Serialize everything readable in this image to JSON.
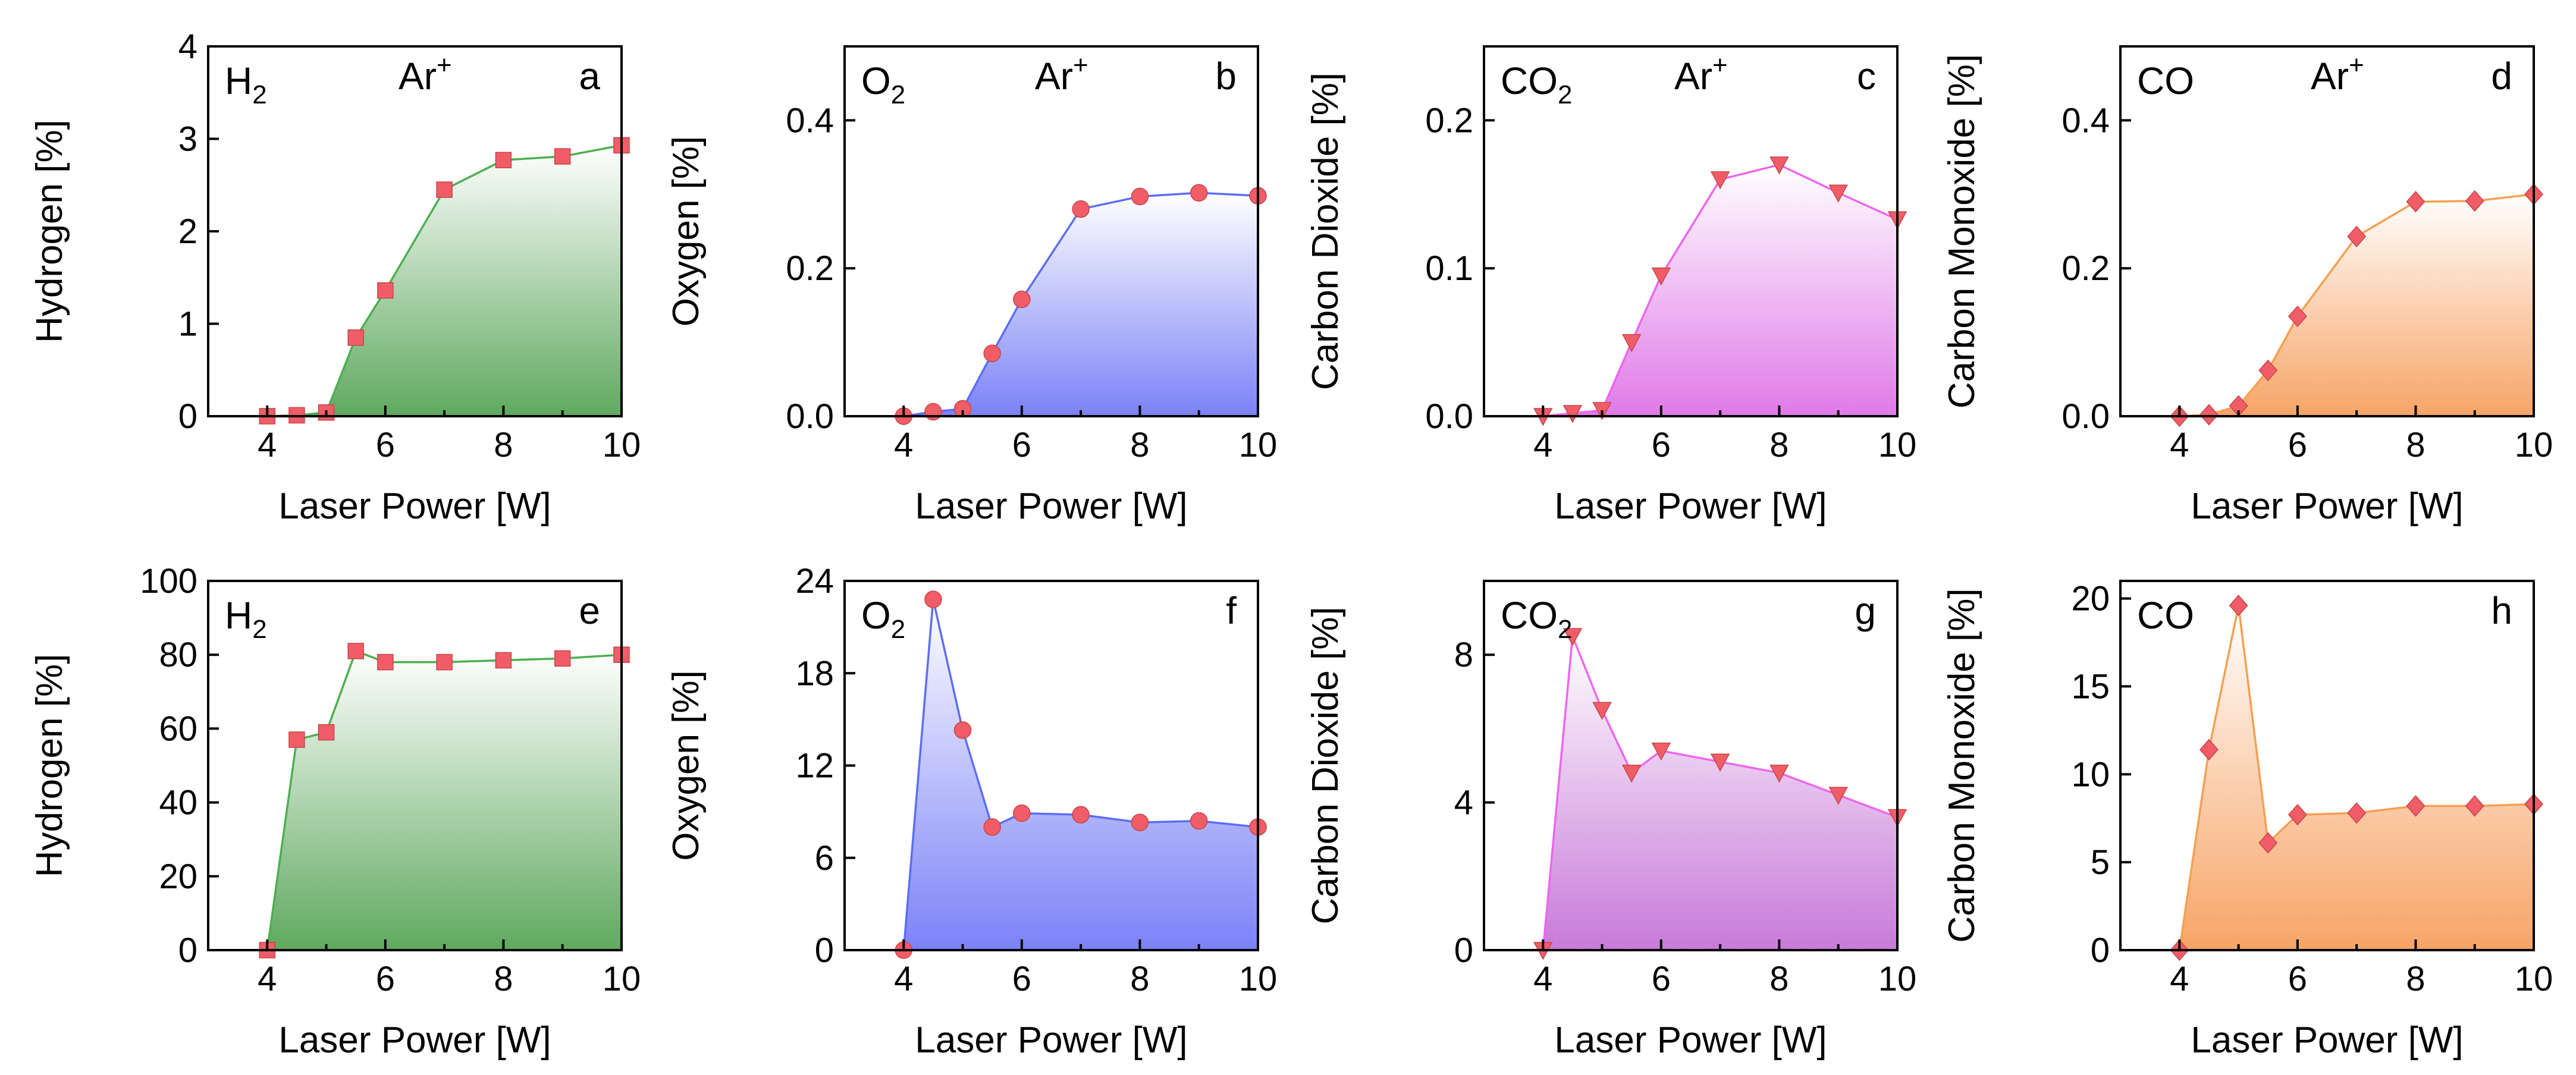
{
  "figure": {
    "x_axis_label": "Laser Power [W]",
    "marker_color": "#f05d66"
  },
  "chart_data": [
    {
      "id": "a",
      "type": "area",
      "panel_letter": "a",
      "gas_base": "H",
      "gas_sub": "2",
      "condition_base": "Ar",
      "condition_sup": "+",
      "ylabel": "Hydrogen [%]",
      "xlabel": "Laser Power [W]",
      "xlim": [
        3,
        10
      ],
      "xticks": [
        4,
        6,
        8,
        10
      ],
      "ylim": [
        0,
        4
      ],
      "yticks": [
        0,
        1,
        2,
        3,
        4
      ],
      "ytick_labels": [
        "0",
        "1",
        "2",
        "3",
        "4"
      ],
      "x": [
        4,
        4.5,
        5,
        5.5,
        6,
        7,
        8,
        9,
        10
      ],
      "values": [
        0,
        0.01,
        0.04,
        0.85,
        1.36,
        2.45,
        2.77,
        2.81,
        2.93
      ],
      "marker": "square",
      "line_color": "#4caf50",
      "fill_top": "#ffffff",
      "fill_bottom": "#5fa95f"
    },
    {
      "id": "b",
      "type": "area",
      "panel_letter": "b",
      "gas_base": "O",
      "gas_sub": "2",
      "condition_base": "Ar",
      "condition_sup": "+",
      "ylabel": "Oxygen [%]",
      "xlabel": "Laser Power [W]",
      "xlim": [
        3,
        10
      ],
      "xticks": [
        4,
        6,
        8,
        10
      ],
      "ylim": [
        0,
        0.5
      ],
      "yticks": [
        0,
        0.2,
        0.4
      ],
      "ytick_labels": [
        "0.0",
        "0.2",
        "0.4"
      ],
      "x": [
        4,
        4.5,
        5,
        5.5,
        6,
        7,
        8,
        9,
        10
      ],
      "values": [
        0,
        0.006,
        0.01,
        0.085,
        0.158,
        0.28,
        0.297,
        0.302,
        0.298
      ],
      "marker": "circle",
      "line_color": "#5b6ef5",
      "fill_top": "#ffffff",
      "fill_bottom": "#7b82f7"
    },
    {
      "id": "c",
      "type": "area",
      "panel_letter": "c",
      "gas_base": "CO",
      "gas_sub": "2",
      "condition_base": "Ar",
      "condition_sup": "+",
      "ylabel": "Carbon Dioxide [%]",
      "xlabel": "Laser Power [W]",
      "xlim": [
        3,
        10
      ],
      "xticks": [
        4,
        6,
        8,
        10
      ],
      "ylim": [
        0,
        0.25
      ],
      "yticks": [
        0,
        0.1,
        0.2
      ],
      "ytick_labels": [
        "0.0",
        "0.1",
        "0.2"
      ],
      "x": [
        4,
        4.5,
        5,
        5.5,
        6,
        7,
        8,
        9,
        10
      ],
      "values": [
        0,
        0.002,
        0.004,
        0.05,
        0.095,
        0.16,
        0.17,
        0.151,
        0.133
      ],
      "marker": "triangle-down",
      "line_color": "#ee66ee",
      "fill_top": "#ffffff",
      "fill_bottom": "#e07ae8"
    },
    {
      "id": "d",
      "type": "area",
      "panel_letter": "d",
      "gas_base": "CO",
      "gas_sub": "",
      "condition_base": "Ar",
      "condition_sup": "+",
      "ylabel": "Carbon Monoxide [%]",
      "xlabel": "Laser Power [W]",
      "xlim": [
        3,
        10
      ],
      "xticks": [
        4,
        6,
        8,
        10
      ],
      "ylim": [
        0,
        0.5
      ],
      "yticks": [
        0,
        0.2,
        0.4
      ],
      "ytick_labels": [
        "0.0",
        "0.2",
        "0.4"
      ],
      "x": [
        4,
        4.5,
        5,
        5.5,
        6,
        7,
        8,
        9,
        10
      ],
      "values": [
        0,
        0.002,
        0.014,
        0.062,
        0.135,
        0.243,
        0.29,
        0.291,
        0.3
      ],
      "marker": "diamond",
      "line_color": "#f5a052",
      "fill_top": "#ffffff",
      "fill_bottom": "#f7a466"
    },
    {
      "id": "e",
      "type": "area",
      "panel_letter": "e",
      "gas_base": "H",
      "gas_sub": "2",
      "condition_base": "",
      "condition_sup": "",
      "ylabel": "Hydrogen [%]",
      "xlabel": "Laser Power [W]",
      "xlim": [
        3,
        10
      ],
      "xticks": [
        4,
        6,
        8,
        10
      ],
      "ylim": [
        0,
        100
      ],
      "yticks": [
        0,
        20,
        40,
        60,
        80,
        100
      ],
      "ytick_labels": [
        "0",
        "20",
        "40",
        "60",
        "80",
        "100"
      ],
      "x": [
        4,
        4.5,
        5,
        5.5,
        6,
        7,
        8,
        9,
        10
      ],
      "values": [
        0,
        57,
        59,
        81,
        78,
        78,
        78.5,
        79,
        80
      ],
      "marker": "square",
      "line_color": "#4caf50",
      "fill_top": "#ffffff",
      "fill_bottom": "#5fa95f"
    },
    {
      "id": "f",
      "type": "area",
      "panel_letter": "f",
      "gas_base": "O",
      "gas_sub": "2",
      "condition_base": "",
      "condition_sup": "",
      "ylabel": "Oxygen [%]",
      "xlabel": "Laser Power [W]",
      "xlim": [
        3,
        10
      ],
      "xticks": [
        4,
        6,
        8,
        10
      ],
      "ylim": [
        0,
        24
      ],
      "yticks": [
        0,
        6,
        12,
        18,
        24
      ],
      "ytick_labels": [
        "0",
        "6",
        "12",
        "18",
        "24"
      ],
      "x": [
        4,
        4.5,
        5,
        5.5,
        6,
        7,
        8,
        9,
        10
      ],
      "values": [
        0,
        22.8,
        14.3,
        8,
        8.9,
        8.8,
        8.3,
        8.4,
        8
      ],
      "marker": "circle",
      "line_color": "#5b6ef5",
      "fill_top": "#ffffff",
      "fill_bottom": "#7b82f7"
    },
    {
      "id": "g",
      "type": "area",
      "panel_letter": "g",
      "gas_base": "CO",
      "gas_sub": "2",
      "condition_base": "",
      "condition_sup": "",
      "ylabel": "Carbon Dioxide [%]",
      "xlabel": "Laser Power [W]",
      "xlim": [
        3,
        10
      ],
      "xticks": [
        4,
        6,
        8,
        10
      ],
      "ylim": [
        0,
        10
      ],
      "yticks": [
        0,
        4,
        8
      ],
      "ytick_labels": [
        "0",
        "4",
        "8"
      ],
      "x": [
        4,
        4.5,
        5,
        5.5,
        6,
        7,
        8,
        9,
        10
      ],
      "values": [
        0,
        8.5,
        6.5,
        4.8,
        5.4,
        5.1,
        4.8,
        4.2,
        3.6
      ],
      "marker": "triangle-down",
      "line_color": "#ee66ee",
      "fill_top": "#ffffff",
      "fill_bottom": "#c87ad9"
    },
    {
      "id": "h",
      "type": "area",
      "panel_letter": "h",
      "gas_base": "CO",
      "gas_sub": "",
      "condition_base": "",
      "condition_sup": "",
      "ylabel": "Carbon Monoxide [%]",
      "xlabel": "Laser Power [W]",
      "xlim": [
        3,
        10
      ],
      "xticks": [
        4,
        6,
        8,
        10
      ],
      "ylim": [
        0,
        21
      ],
      "yticks": [
        0,
        5,
        10,
        15,
        20
      ],
      "ytick_labels": [
        "0",
        "5",
        "10",
        "15",
        "20"
      ],
      "x": [
        4,
        4.5,
        5,
        5.5,
        6,
        7,
        8,
        9,
        10
      ],
      "values": [
        0,
        11.4,
        19.6,
        6.1,
        7.7,
        7.8,
        8.2,
        8.2,
        8.3
      ],
      "marker": "diamond",
      "line_color": "#f5a052",
      "fill_top": "#ffffff",
      "fill_bottom": "#f7a466"
    }
  ]
}
